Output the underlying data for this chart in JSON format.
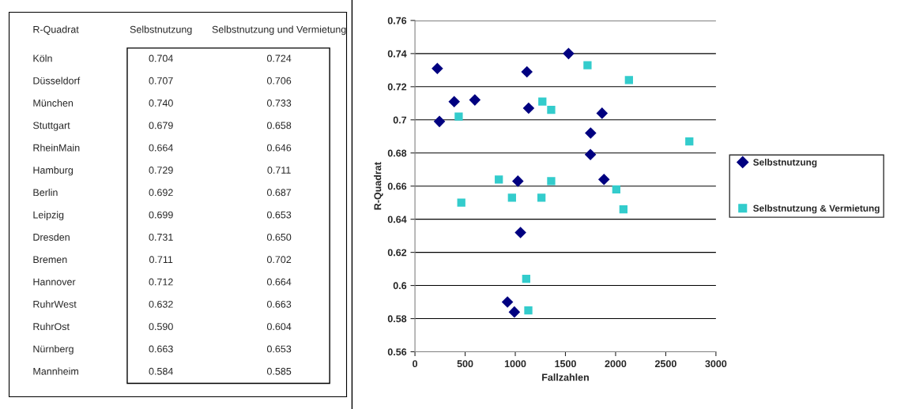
{
  "chart_data": [
    {
      "type": "other",
      "ylabel": "R-Quadrat",
      "categories": [
        "Köln",
        "Düsseldorf",
        "München",
        "Stuttgart",
        "RheinMain",
        "Hamburg",
        "Berlin",
        "Leipzig",
        "Dresden",
        "Bremen",
        "Hannover",
        "RuhrWest",
        "RuhrOst",
        "Nürnberg",
        "Mannheim"
      ],
      "series": [
        {
          "name": "Selbstnutzung",
          "values": [
            0.704,
            0.707,
            0.74,
            0.679,
            0.664,
            0.729,
            0.692,
            0.699,
            0.731,
            0.711,
            0.712,
            0.632,
            0.59,
            0.663,
            0.584
          ],
          "value_labels": [
            "0.704",
            "0.707",
            "0.740",
            "0.679",
            "0.664",
            "0.729",
            "0.692",
            "0.699",
            "0.731",
            "0.711",
            "0.712",
            "0.632",
            "0.590",
            "0.663",
            "0.584"
          ]
        },
        {
          "name": "Selbstnutzung und Vermietung",
          "values": [
            0.724,
            0.706,
            0.733,
            0.658,
            0.646,
            0.711,
            0.687,
            0.653,
            0.65,
            0.702,
            0.664,
            0.663,
            0.604,
            0.653,
            0.585
          ],
          "value_labels": [
            "0.724",
            "0.706",
            "0.733",
            "0.658",
            "0.646",
            "0.711",
            "0.687",
            "0.653",
            "0.650",
            "0.702",
            "0.664",
            "0.663",
            "0.604",
            "0.653",
            "0.585"
          ]
        }
      ]
    },
    {
      "type": "scatter",
      "xlabel": "Fallzahlen",
      "ylabel": "R-Quadrat",
      "xlim": [
        0,
        3000
      ],
      "xticks": [
        0,
        500,
        1000,
        1500,
        2000,
        2500,
        3000
      ],
      "ylim": [
        0.56,
        0.76
      ],
      "yticks": [
        0.56,
        0.58,
        0.6,
        0.62,
        0.64,
        0.66,
        0.68,
        0.7,
        0.72,
        0.74,
        0.76
      ],
      "grid": "y",
      "legend": "right",
      "series": [
        {
          "name": "Selbstnutzung",
          "color": "#000080",
          "marker": "diamond",
          "x": [
            1865,
            1133,
            1531,
            1749,
            1884,
            1116,
            1751,
            244,
            223,
            391,
            597,
            1052,
            922,
            1026,
            991
          ],
          "values": [
            0.704,
            0.707,
            0.74,
            0.679,
            0.664,
            0.729,
            0.692,
            0.699,
            0.731,
            0.711,
            0.712,
            0.632,
            0.59,
            0.663,
            0.584
          ]
        },
        {
          "name": "Selbstnutzung & Vermietung",
          "color": "#33cccc",
          "marker": "square",
          "x": [
            2133,
            1358,
            1720,
            2007,
            2078,
            1270,
            2735,
            967,
            462,
            436,
            836,
            1358,
            1109,
            1261,
            1130
          ],
          "values": [
            0.724,
            0.706,
            0.733,
            0.658,
            0.646,
            0.711,
            0.687,
            0.653,
            0.65,
            0.702,
            0.664,
            0.663,
            0.604,
            0.653,
            0.585
          ]
        }
      ]
    }
  ]
}
